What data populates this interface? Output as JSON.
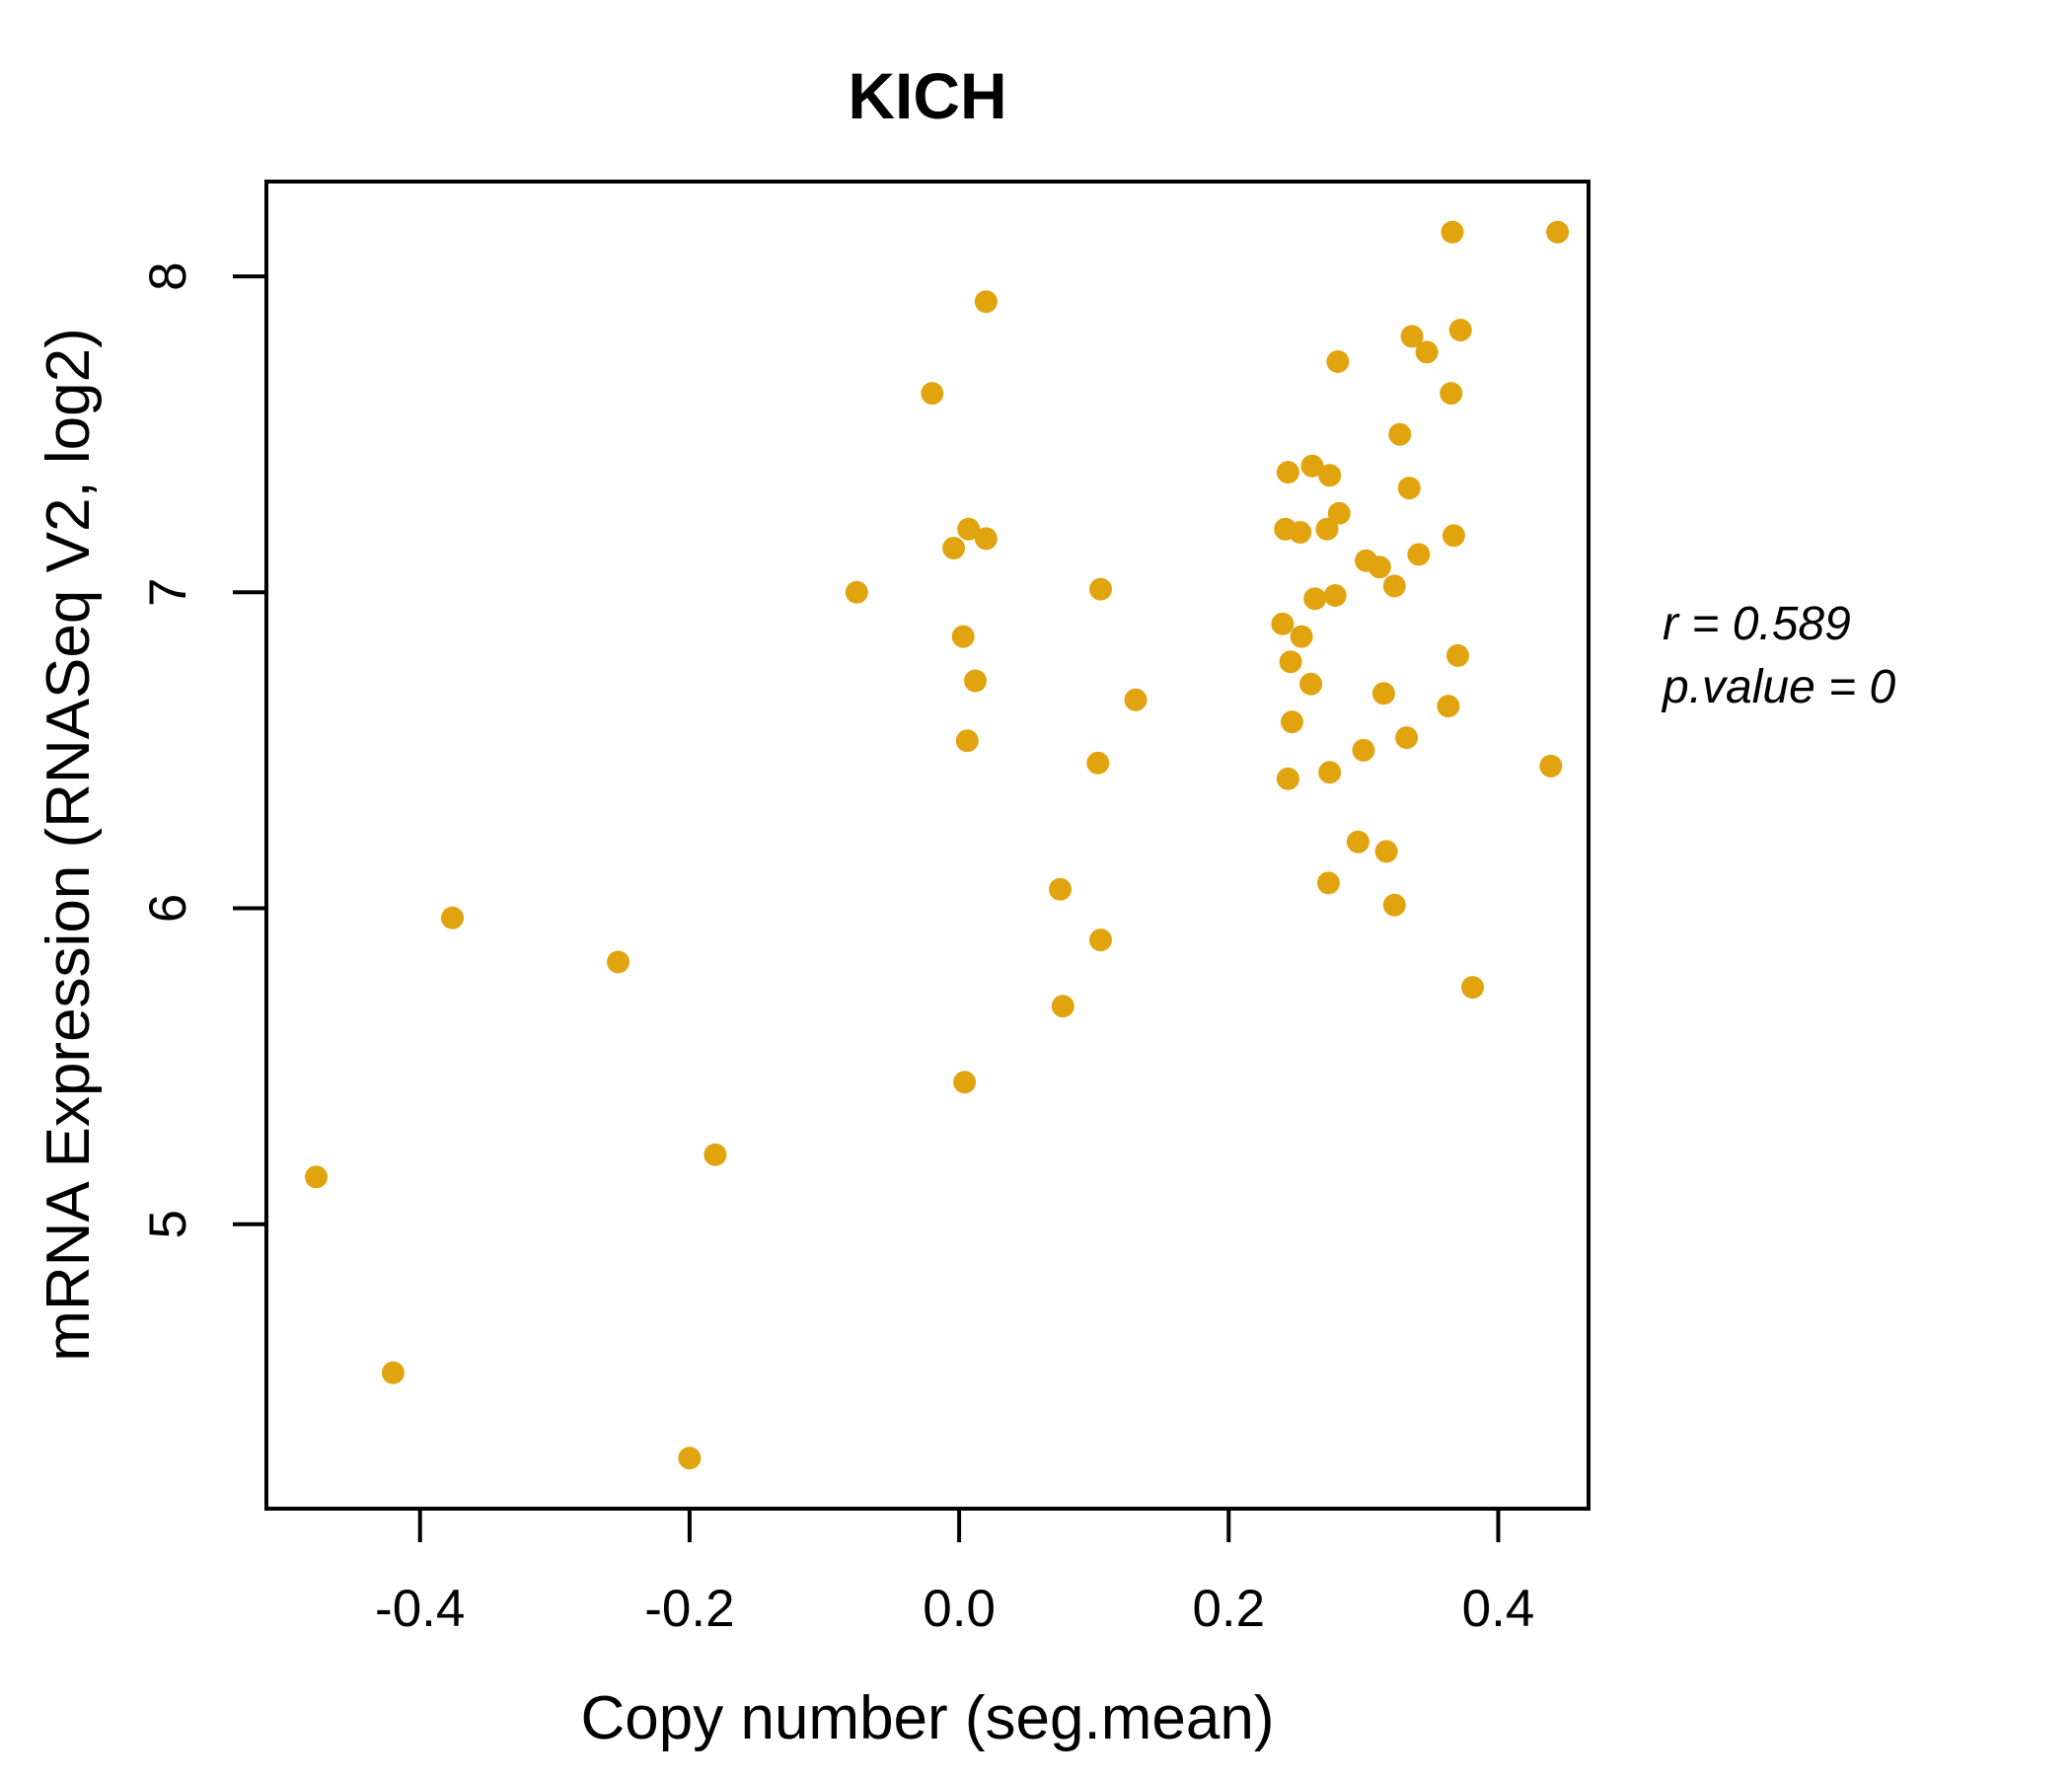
{
  "colors": {
    "accent": "#E1A40F",
    "point": "#E1A40F",
    "axis": "#000000",
    "background": "#ffffff"
  },
  "annotation": {
    "line1": "r = 0.589",
    "line2": "p.value = 0"
  },
  "chart_data": {
    "type": "scatter",
    "title": "KICH",
    "xlabel": "Copy number (seg.mean)",
    "ylabel": "mRNA Expression (RNASeq V2, log2)",
    "xlim": [
      -0.514,
      0.467
    ],
    "ylim": [
      4.1,
      8.3
    ],
    "grid": false,
    "legend": "none",
    "correlation_r": 0.589,
    "p_value": 0,
    "x_tick_values": [
      -0.4,
      -0.2,
      0.0,
      0.2,
      0.4
    ],
    "x_tick_labels": [
      "-0.4",
      "-0.2",
      "0.0",
      "0.2",
      "0.4"
    ],
    "y_tick_values": [
      5,
      6,
      7,
      8
    ],
    "y_tick_labels": [
      "5",
      "6",
      "7",
      "8"
    ],
    "marker": {
      "shape": "circle",
      "radius_px": 11.5
    },
    "points": [
      [
        0.366,
        8.14
      ],
      [
        0.444,
        8.14
      ],
      [
        0.02,
        7.92
      ],
      [
        0.336,
        7.81
      ],
      [
        0.372,
        7.83
      ],
      [
        0.347,
        7.76
      ],
      [
        0.281,
        7.73
      ],
      [
        -0.02,
        7.63
      ],
      [
        0.365,
        7.63
      ],
      [
        0.327,
        7.5
      ],
      [
        0.262,
        7.4
      ],
      [
        0.244,
        7.38
      ],
      [
        0.275,
        7.37
      ],
      [
        0.334,
        7.33
      ],
      [
        0.282,
        7.25
      ],
      [
        0.273,
        7.2
      ],
      [
        0.242,
        7.2
      ],
      [
        0.253,
        7.19
      ],
      [
        0.367,
        7.18
      ],
      [
        0.341,
        7.12
      ],
      [
        0.302,
        7.1
      ],
      [
        0.312,
        7.08
      ],
      [
        0.323,
        7.02
      ],
      [
        0.264,
        6.98
      ],
      [
        0.279,
        6.99
      ],
      [
        0.007,
        7.2
      ],
      [
        0.02,
        7.17
      ],
      [
        -0.004,
        7.14
      ],
      [
        -0.076,
        7.0
      ],
      [
        0.105,
        7.01
      ],
      [
        0.24,
        6.9
      ],
      [
        0.254,
        6.86
      ],
      [
        0.246,
        6.78
      ],
      [
        0.261,
        6.71
      ],
      [
        0.37,
        6.8
      ],
      [
        0.315,
        6.68
      ],
      [
        0.363,
        6.64
      ],
      [
        0.003,
        6.86
      ],
      [
        0.012,
        6.72
      ],
      [
        0.131,
        6.66
      ],
      [
        0.006,
        6.53
      ],
      [
        0.247,
        6.59
      ],
      [
        0.103,
        6.46
      ],
      [
        0.244,
        6.41
      ],
      [
        0.275,
        6.43
      ],
      [
        0.3,
        6.5
      ],
      [
        0.332,
        6.54
      ],
      [
        0.439,
        6.45
      ],
      [
        0.296,
        6.21
      ],
      [
        0.317,
        6.18
      ],
      [
        0.075,
        6.06
      ],
      [
        0.274,
        6.08
      ],
      [
        0.323,
        6.01
      ],
      [
        -0.376,
        5.97
      ],
      [
        0.105,
        5.9
      ],
      [
        -0.253,
        5.83
      ],
      [
        0.381,
        5.75
      ],
      [
        0.077,
        5.69
      ],
      [
        0.004,
        5.45
      ],
      [
        -0.181,
        5.22
      ],
      [
        -0.477,
        5.15
      ],
      [
        -0.42,
        4.53
      ],
      [
        -0.2,
        4.26
      ]
    ]
  }
}
